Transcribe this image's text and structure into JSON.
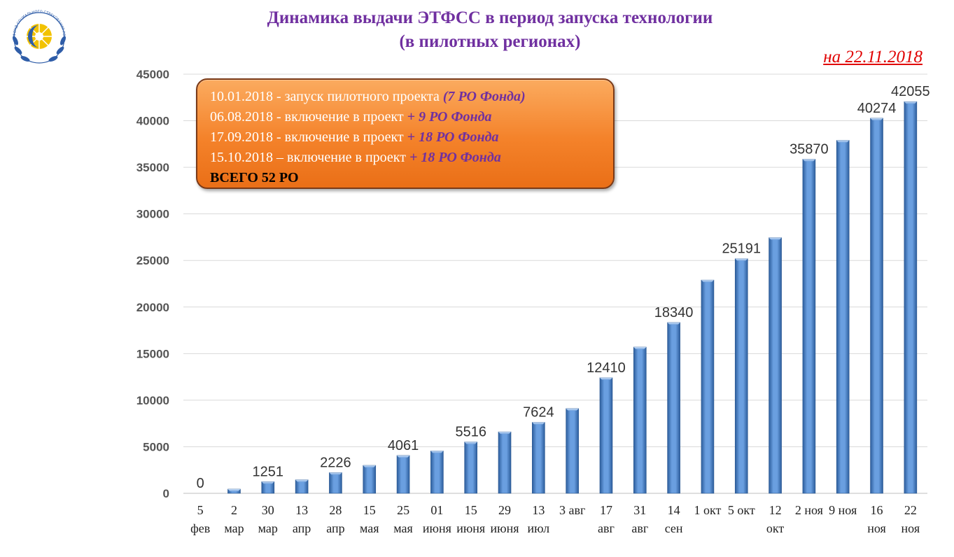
{
  "title_line1": "Динамика выдачи ЭТФСС в период запуска технологии",
  "title_line2": "(в пилотных регионах)",
  "date_label": "на 22.11.2018",
  "logo": {
    "icon": "fss-emblem-icon",
    "text": "ФОНД СОЦИАЛЬНОГО СТРАХОВАНИЯ РОССИЙСКОЙ ФЕДЕРАЦИИ"
  },
  "info_box": {
    "lines": [
      {
        "text": "10.01.2018 - запуск пилотного проекта ",
        "emphasis": "(7 РО Фонда)"
      },
      {
        "text": "06.08.2018 - включение в проект ",
        "emphasis": "+ 9 РО Фонда"
      },
      {
        "text": "17.09.2018 - включение в проект ",
        "emphasis": "+ 18 РО Фонда"
      },
      {
        "text": "15.10.2018 – включение в проект ",
        "emphasis": "+ 18 РО Фонда"
      }
    ],
    "total": "ВСЕГО 52 РО"
  },
  "colors": {
    "title": "#7030A0",
    "date": "#E00000",
    "bar": "#4F81BD",
    "box": "#F4822A"
  },
  "chart_data": {
    "type": "bar",
    "categories": [
      [
        "5",
        "фев"
      ],
      [
        "2",
        "мар"
      ],
      [
        "30",
        "мар"
      ],
      [
        "13",
        "апр"
      ],
      [
        "28",
        "апр"
      ],
      [
        "15",
        "мая"
      ],
      [
        "25",
        "мая"
      ],
      [
        "01",
        "июня"
      ],
      [
        "15",
        "июня"
      ],
      [
        "29",
        "июня"
      ],
      [
        "13",
        "июл"
      ],
      [
        "3 авг",
        ""
      ],
      [
        "17",
        "авг"
      ],
      [
        "31",
        "авг"
      ],
      [
        "14",
        "сен"
      ],
      [
        "1 окт",
        ""
      ],
      [
        "5 окт",
        ""
      ],
      [
        "12",
        "окт"
      ],
      [
        "2 ноя",
        ""
      ],
      [
        "9 ноя",
        ""
      ],
      [
        "16",
        "ноя"
      ],
      [
        "22",
        "ноя"
      ]
    ],
    "values": [
      0,
      450,
      1251,
      1450,
      2226,
      3000,
      4061,
      4550,
      5516,
      6600,
      7624,
      9100,
      12410,
      15700,
      18340,
      22900,
      25191,
      27450,
      35870,
      37900,
      40274,
      42055
    ],
    "data_labels": [
      "0",
      "",
      "1251",
      "",
      "2226",
      "",
      "4061",
      "",
      "5516",
      "",
      "7624",
      "",
      "12410",
      "",
      "18340",
      "",
      "25191",
      "",
      "35870",
      "",
      "40274",
      "42055"
    ],
    "y_ticks": [
      0,
      5000,
      10000,
      15000,
      20000,
      25000,
      30000,
      35000,
      40000,
      45000
    ],
    "ylim": [
      0,
      45000
    ],
    "grid": true,
    "legend": "none"
  }
}
